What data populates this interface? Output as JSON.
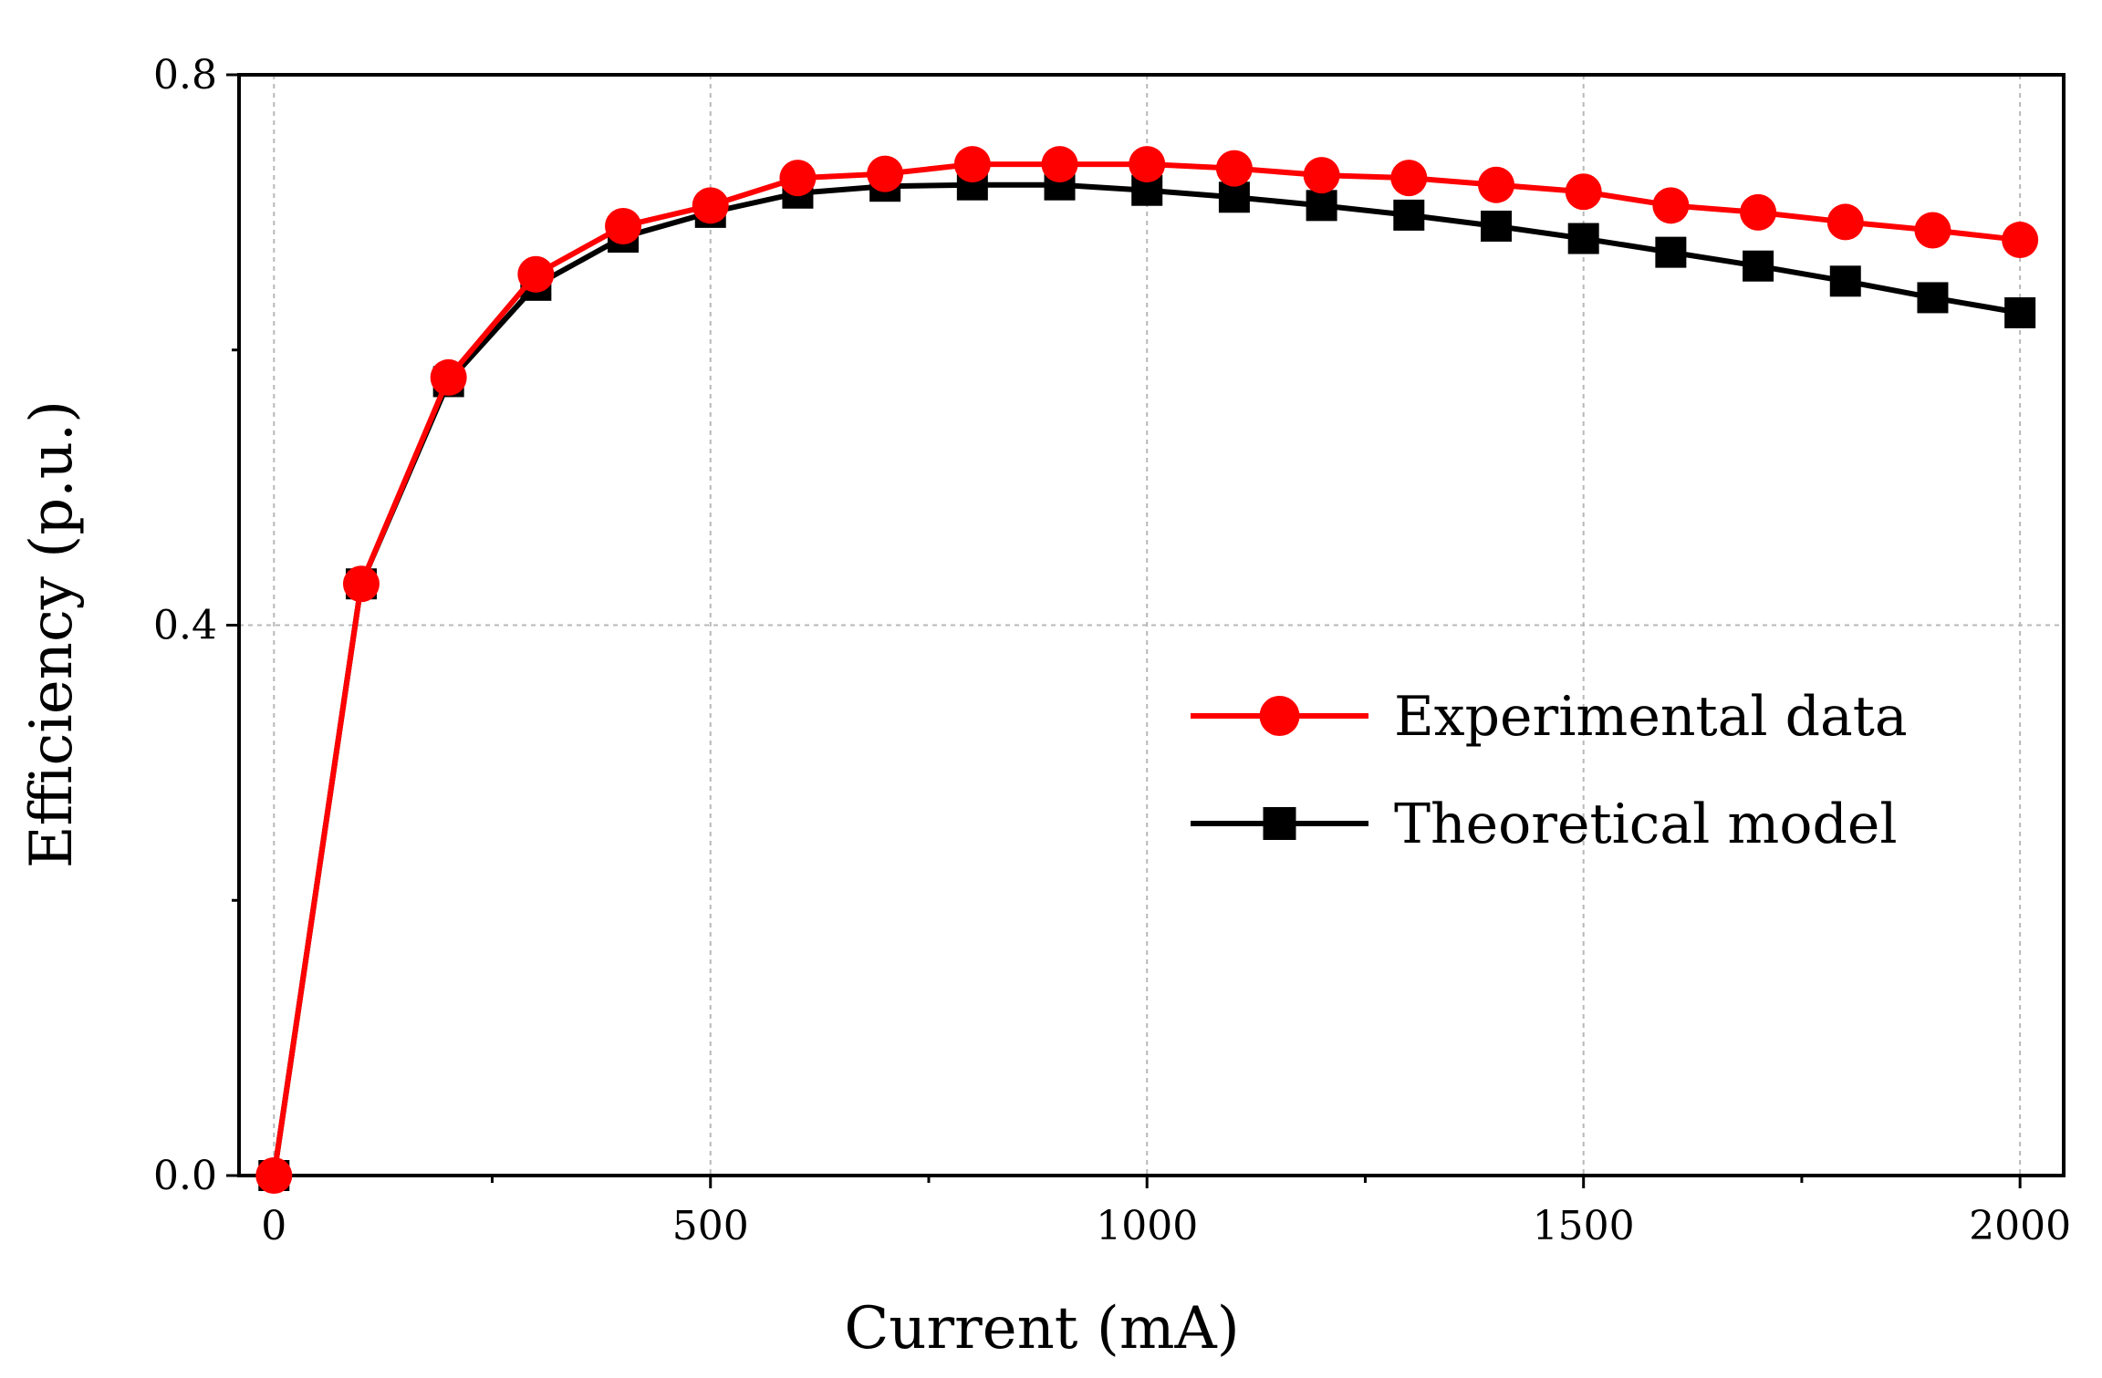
{
  "chart_data": {
    "type": "line",
    "title": "",
    "xlabel": "Current (mA)",
    "ylabel": "Efficiency (p.u.)",
    "xlim": [
      -40,
      2050
    ],
    "ylim": [
      0,
      0.8
    ],
    "x": [
      0,
      100,
      200,
      300,
      400,
      500,
      600,
      700,
      800,
      900,
      1000,
      1100,
      1200,
      1300,
      1400,
      1500,
      1600,
      1700,
      1800,
      1900,
      2000
    ],
    "x_ticks": [
      {
        "value": 0,
        "label": "0"
      },
      {
        "value": 500,
        "label": "500"
      },
      {
        "value": 1000,
        "label": "1000"
      },
      {
        "value": 1500,
        "label": "1500"
      },
      {
        "value": 2000,
        "label": "2000"
      }
    ],
    "x_minor_ticks": [
      250,
      750,
      1250,
      1750
    ],
    "y_ticks": [
      {
        "value": 0.0,
        "label": "0.0"
      },
      {
        "value": 0.4,
        "label": "0.4"
      },
      {
        "value": 0.8,
        "label": "0.8"
      }
    ],
    "y_minor_ticks": [
      0.2,
      0.6
    ],
    "grid": true,
    "legend_position": "right-middle",
    "series": [
      {
        "name": "Experimental data",
        "color": "#ff0000",
        "marker": "circle",
        "values": [
          0.0,
          0.43,
          0.58,
          0.655,
          0.69,
          0.705,
          0.725,
          0.728,
          0.735,
          0.735,
          0.735,
          0.732,
          0.727,
          0.725,
          0.72,
          0.715,
          0.705,
          0.7,
          0.693,
          0.687,
          0.68
        ]
      },
      {
        "name": "Theoretical model",
        "color": "#000000",
        "marker": "square",
        "values": [
          0.0,
          0.43,
          0.577,
          0.647,
          0.682,
          0.7,
          0.714,
          0.719,
          0.72,
          0.72,
          0.716,
          0.711,
          0.705,
          0.698,
          0.69,
          0.681,
          0.671,
          0.661,
          0.65,
          0.638,
          0.627
        ]
      }
    ]
  }
}
